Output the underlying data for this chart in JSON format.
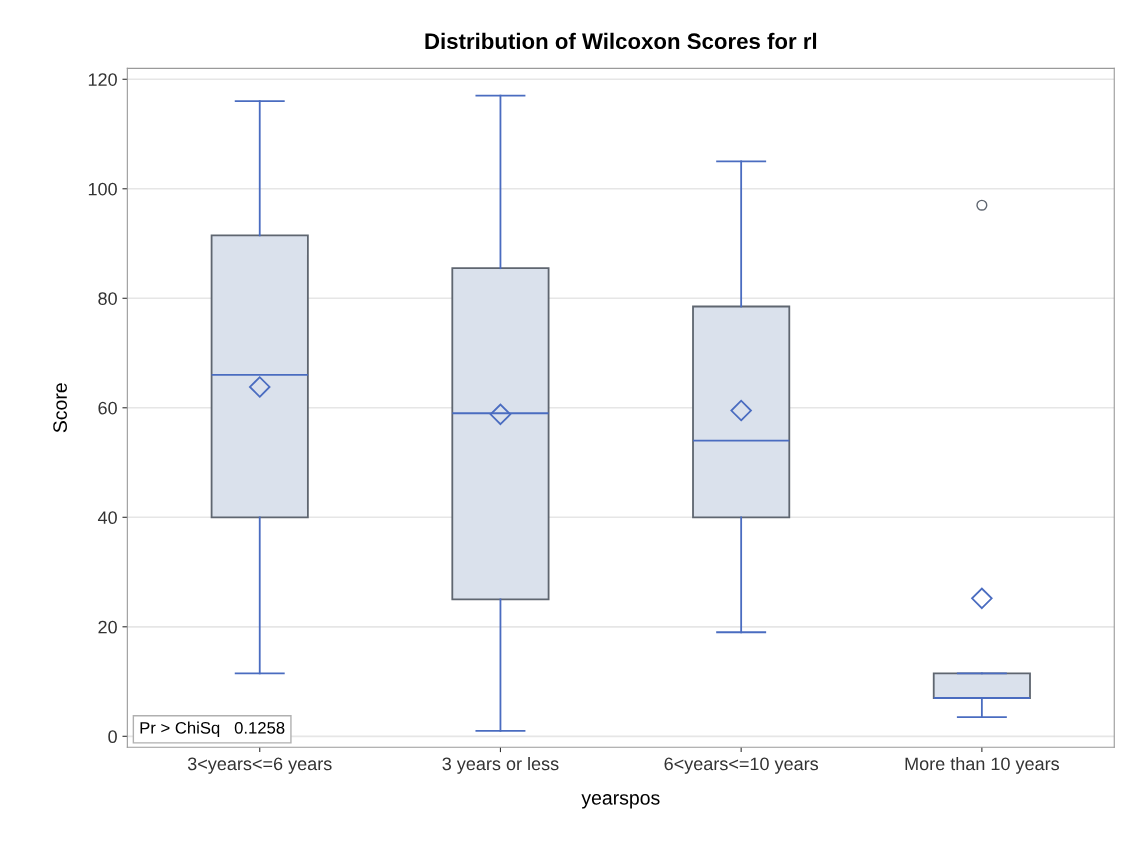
{
  "chart_data": {
    "type": "box",
    "title": "Distribution of Wilcoxon Scores for rl",
    "xlabel": "yearspos",
    "ylabel": "Score",
    "categories": [
      "3<years<=6 years",
      "3 years or less",
      "6<years<=10 years",
      "More than 10 years"
    ],
    "boxes": [
      {
        "low": 11.5,
        "q1": 40,
        "median": 66,
        "q3": 91.5,
        "high": 116,
        "mean": 63.8
      },
      {
        "low": 1,
        "q1": 25,
        "median": 59,
        "q3": 85.5,
        "high": 117,
        "mean": 58.8
      },
      {
        "low": 19,
        "q1": 40,
        "median": 54,
        "q3": 78.5,
        "high": 105,
        "mean": 59.5
      },
      {
        "low": 3.5,
        "q1": 7,
        "median": 7,
        "q3": 11.5,
        "high": 11.5,
        "mean": 25.2,
        "outliers": [
          97
        ]
      }
    ],
    "color": "#dae1ec",
    "ylim": [
      -2,
      122
    ],
    "yticks": [
      0,
      20,
      40,
      60,
      80,
      100,
      120
    ],
    "grid": "y",
    "legend": false,
    "marker": "diamond",
    "annotations": [
      "Pr > ChiSq   0.1258"
    ]
  }
}
